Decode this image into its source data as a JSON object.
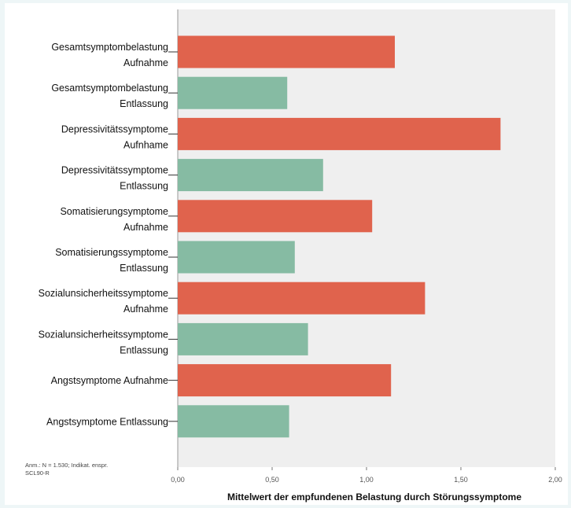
{
  "chart_data": {
    "type": "bar",
    "orientation": "horizontal",
    "categories": [
      [
        "Gesamtsymptombelastung",
        "Aufnahme"
      ],
      [
        "Gesamtsymptombelastung",
        "Entlassung"
      ],
      [
        "Depressivitätssymptome",
        "Aufnhame"
      ],
      [
        "Depressivitätssymptome",
        "Entlassung"
      ],
      [
        "Somatisierungsymptome",
        "Aufnahme"
      ],
      [
        "Somatisierungssymptome",
        "Entlassung"
      ],
      [
        "Sozialunsicherheitssymptome",
        "Aufnahme"
      ],
      [
        "Sozialunsicherheitssymptome",
        "Entlassung"
      ],
      [
        "Angstsymptome Aufnahme"
      ],
      [
        "Angstsymptome Entlassung"
      ]
    ],
    "values": [
      1.15,
      0.58,
      1.71,
      0.77,
      1.03,
      0.62,
      1.31,
      0.69,
      1.13,
      0.59
    ],
    "phase": [
      "admission",
      "discharge",
      "admission",
      "discharge",
      "admission",
      "discharge",
      "admission",
      "discharge",
      "admission",
      "discharge"
    ],
    "colors": {
      "admission": "#e0634d",
      "discharge": "#86bba3",
      "plot_bg": "#efefef"
    },
    "xlabel": "Mittelwert der empfundenen Belastung durch Störungssymptome",
    "xlim": [
      0,
      2.0
    ],
    "xticks": [
      0,
      0.5,
      1.0,
      1.5,
      2.0
    ],
    "xtick_labels": [
      "0,00",
      "0,50",
      "1,00",
      "1,50",
      "2,00"
    ],
    "grid": false,
    "note_lines": [
      "Anm.: N = 1.530; Indikat. enspr.",
      "SCL90-R"
    ]
  }
}
